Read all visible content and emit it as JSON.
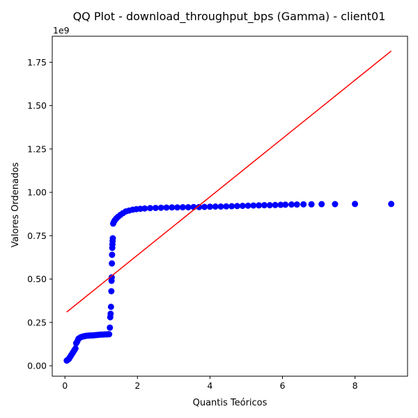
{
  "chart_data": {
    "type": "scatter",
    "title": "QQ Plot - download_throughput_bps (Gamma) - client01",
    "xlabel": "Quantis Teóricos",
    "ylabel": "Valores Ordenados",
    "y_offset_label": "1e9",
    "x_ticks": [
      0,
      2,
      4,
      6,
      8
    ],
    "x_tick_labels": [
      "0",
      "2",
      "4",
      "6",
      "8"
    ],
    "y_ticks": [
      0.0,
      0.25,
      0.5,
      0.75,
      1.0,
      1.25,
      1.5,
      1.75
    ],
    "y_tick_labels": [
      "0.00",
      "0.25",
      "0.50",
      "0.75",
      "1.00",
      "1.25",
      "1.50",
      "1.75"
    ],
    "xlim": [
      -0.35,
      9.45
    ],
    "ylim": [
      -0.06,
      1.9
    ],
    "grid": false,
    "series": [
      {
        "kind": "points",
        "color": "#0000ff",
        "points": [
          [
            0.05,
            0.03
          ],
          [
            0.08,
            0.035
          ],
          [
            0.11,
            0.04
          ],
          [
            0.14,
            0.05
          ],
          [
            0.17,
            0.06
          ],
          [
            0.2,
            0.07
          ],
          [
            0.23,
            0.08
          ],
          [
            0.26,
            0.09
          ],
          [
            0.29,
            0.1
          ],
          [
            0.31,
            0.13
          ],
          [
            0.34,
            0.14
          ],
          [
            0.37,
            0.155
          ],
          [
            0.4,
            0.16
          ],
          [
            0.44,
            0.165
          ],
          [
            0.48,
            0.168
          ],
          [
            0.52,
            0.17
          ],
          [
            0.56,
            0.172
          ],
          [
            0.6,
            0.173
          ],
          [
            0.65,
            0.174
          ],
          [
            0.7,
            0.175
          ],
          [
            0.75,
            0.175
          ],
          [
            0.8,
            0.176
          ],
          [
            0.85,
            0.177
          ],
          [
            0.9,
            0.178
          ],
          [
            0.95,
            0.179
          ],
          [
            1.0,
            0.18
          ],
          [
            1.05,
            0.18
          ],
          [
            1.1,
            0.181
          ],
          [
            1.15,
            0.181
          ],
          [
            1.19,
            0.182
          ],
          [
            1.22,
            0.182
          ],
          [
            1.24,
            0.22
          ],
          [
            1.25,
            0.28
          ],
          [
            1.26,
            0.3
          ],
          [
            1.27,
            0.34
          ],
          [
            1.28,
            0.43
          ],
          [
            1.285,
            0.49
          ],
          [
            1.29,
            0.51
          ],
          [
            1.295,
            0.59
          ],
          [
            1.3,
            0.64
          ],
          [
            1.305,
            0.68
          ],
          [
            1.31,
            0.7
          ],
          [
            1.315,
            0.72
          ],
          [
            1.32,
            0.735
          ],
          [
            1.33,
            0.82
          ],
          [
            1.35,
            0.83
          ],
          [
            1.38,
            0.84
          ],
          [
            1.42,
            0.85
          ],
          [
            1.47,
            0.86
          ],
          [
            1.53,
            0.87
          ],
          [
            1.6,
            0.88
          ],
          [
            1.68,
            0.89
          ],
          [
            1.77,
            0.895
          ],
          [
            1.87,
            0.9
          ],
          [
            1.97,
            0.903
          ],
          [
            2.08,
            0.905
          ],
          [
            2.2,
            0.907
          ],
          [
            2.35,
            0.909
          ],
          [
            2.5,
            0.91
          ],
          [
            2.65,
            0.911
          ],
          [
            2.8,
            0.912
          ],
          [
            2.95,
            0.913
          ],
          [
            3.1,
            0.913
          ],
          [
            3.25,
            0.914
          ],
          [
            3.4,
            0.914
          ],
          [
            3.55,
            0.915
          ],
          [
            3.7,
            0.915
          ],
          [
            3.85,
            0.916
          ],
          [
            4.0,
            0.917
          ],
          [
            4.15,
            0.918
          ],
          [
            4.3,
            0.918
          ],
          [
            4.45,
            0.919
          ],
          [
            4.6,
            0.92
          ],
          [
            4.75,
            0.921
          ],
          [
            4.9,
            0.922
          ],
          [
            5.05,
            0.923
          ],
          [
            5.2,
            0.924
          ],
          [
            5.35,
            0.925
          ],
          [
            5.5,
            0.926
          ],
          [
            5.65,
            0.926
          ],
          [
            5.8,
            0.927
          ],
          [
            5.95,
            0.928
          ],
          [
            6.08,
            0.929
          ],
          [
            6.25,
            0.93
          ],
          [
            6.4,
            0.93
          ],
          [
            6.58,
            0.931
          ],
          [
            6.8,
            0.931
          ],
          [
            7.08,
            0.932
          ],
          [
            7.45,
            0.932
          ],
          [
            8.0,
            0.933
          ],
          [
            9.0,
            0.933
          ]
        ]
      },
      {
        "kind": "line",
        "color": "#ff0000",
        "points": [
          [
            0.05,
            0.31
          ],
          [
            9.0,
            1.815
          ]
        ]
      }
    ]
  }
}
